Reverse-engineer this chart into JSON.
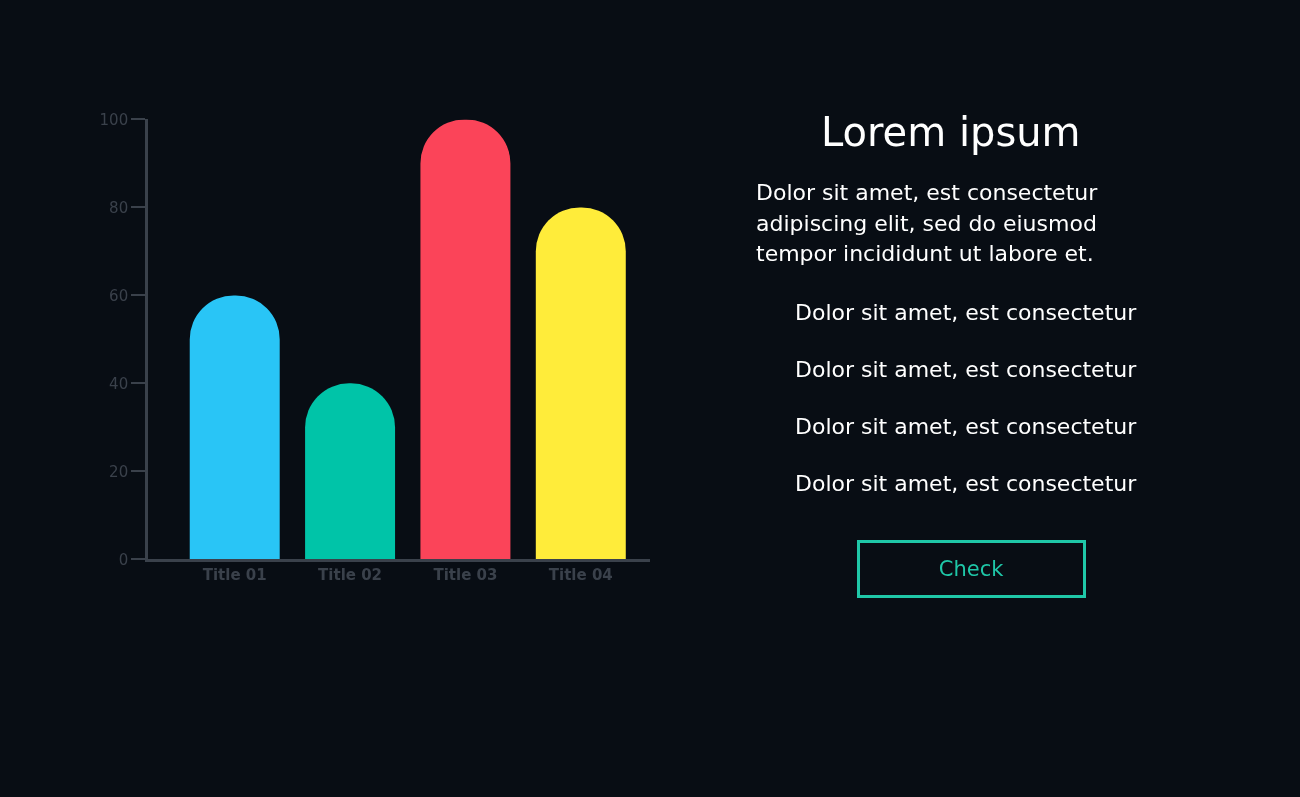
{
  "chart_data": [
    {
      "type": "bar",
      "categories": [
        "Title 01",
        "Title 02",
        "Title 03",
        "Title 04"
      ],
      "values": [
        60,
        40,
        100,
        80
      ],
      "colors": [
        "#29c5f6",
        "#00c4a8",
        "#fb4459",
        "#ffec3a"
      ],
      "ylim": [
        0,
        100
      ],
      "yticks": [
        0,
        20,
        40,
        60,
        80,
        100
      ],
      "grid": false
    },
    {
      "type": "other",
      "title": "Lorem ipsum",
      "subtitle": "Dolor sit amet, est consectetur adipiscing elit, sed do eiusmod tempor incididunt ut labore et.",
      "annotations": [
        "Dolor sit amet, est consectetur",
        "Dolor sit amet, est consectetur",
        "Dolor sit amet, est consectetur",
        "Dolor sit amet, est consectetur",
        "Check"
      ]
    }
  ]
}
